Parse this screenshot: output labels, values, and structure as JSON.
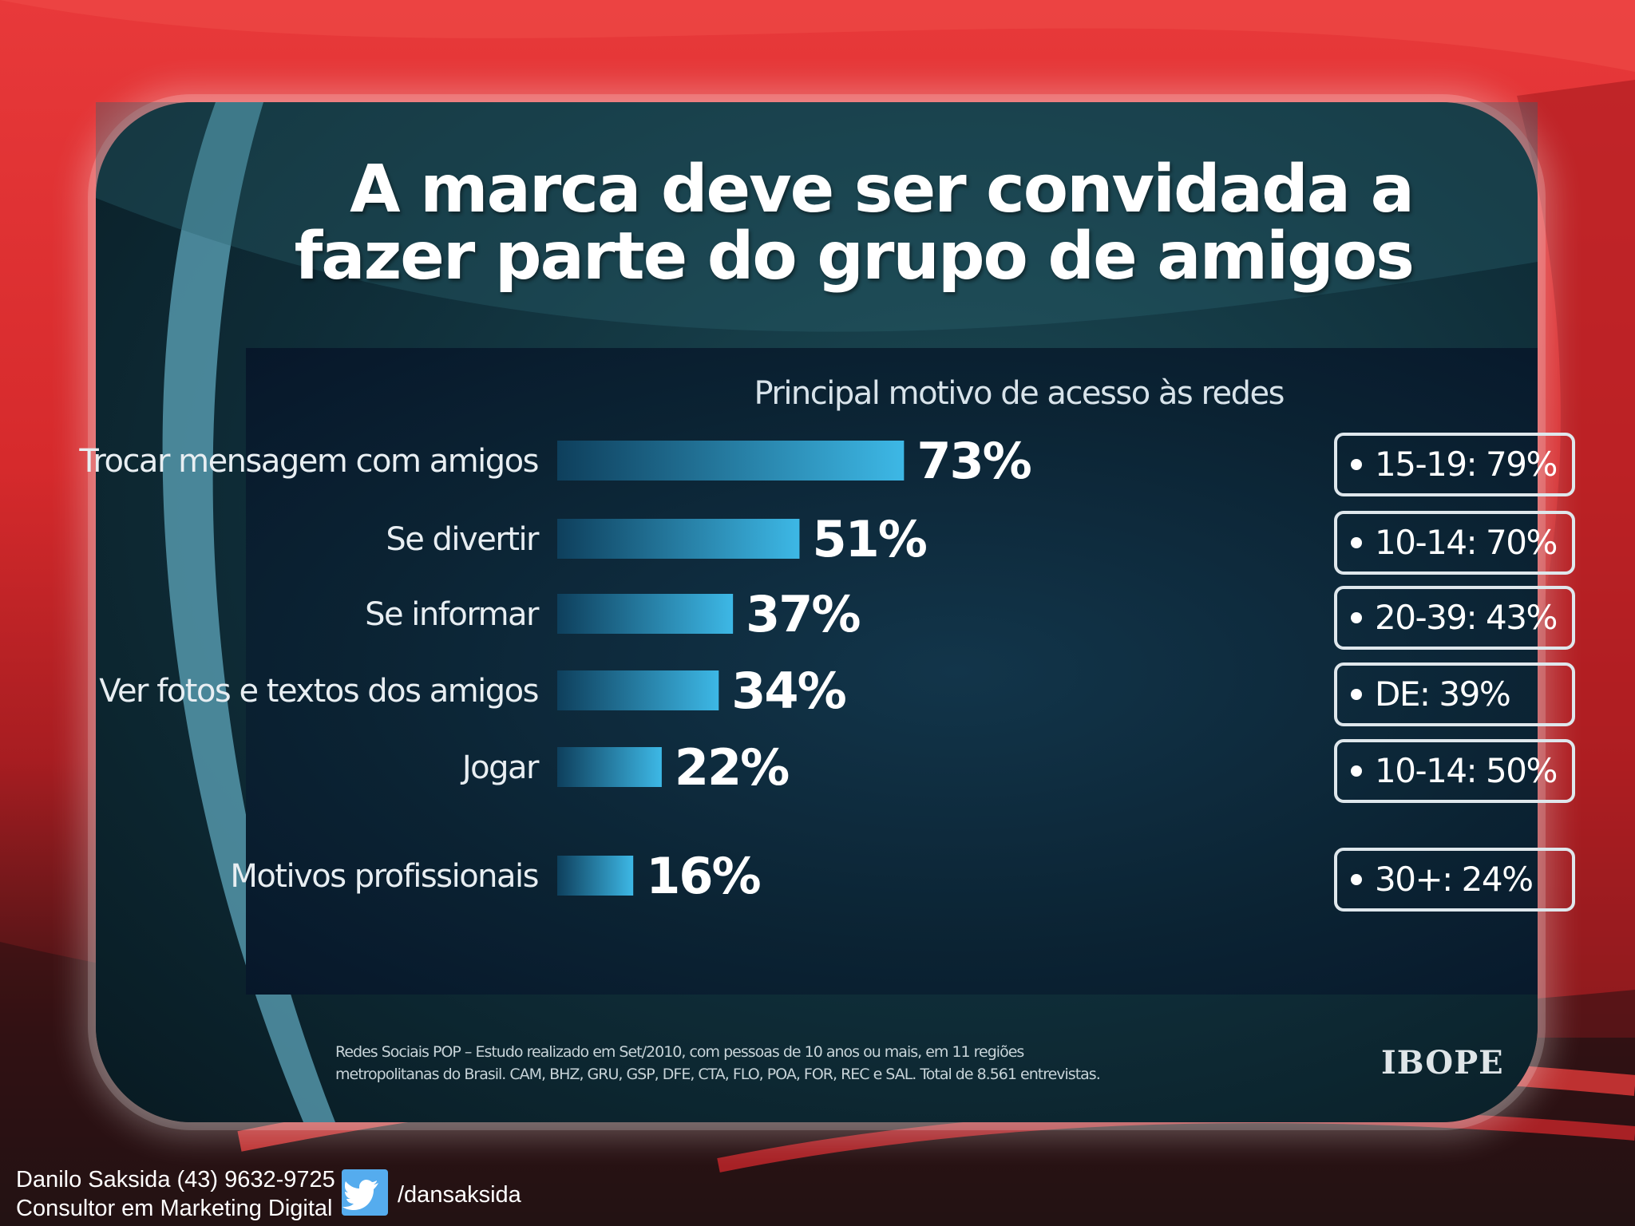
{
  "slide": {
    "title_line1": "A marca deve ser convidada a",
    "title_line2": "fazer parte do grupo de amigos",
    "source_line1": "Redes Sociais POP – Estudo realizado em Set/2010, com pessoas de 10 anos ou mais, em 11 regiões",
    "source_line2": "metropolitanas do Brasil. CAM, BHZ, GRU, GSP, DFE, CTA, FLO, POA, FOR, REC e SAL. Total de 8.561 entrevistas.",
    "logo_text": "IBOPE"
  },
  "footer": {
    "author_line1": "Danilo Saksida (43) 9632-9725",
    "author_line2": "Consultor em Marketing Digital",
    "twitter_icon": "twitter-bird-icon",
    "handle": "/dansaksida"
  },
  "colors": {
    "background_red": "#d62a2c",
    "bar_start": "#0e3f5c",
    "bar_end": "#3db8e6",
    "text_white": "#ffffff"
  },
  "chart_data": {
    "type": "bar",
    "orientation": "horizontal",
    "title": "Principal motivo de acesso às redes",
    "categories": [
      "Trocar mensagem com amigos",
      "Se divertir",
      "Se informar",
      "Ver fotos e textos dos amigos",
      "Jogar",
      "Motivos profissionais"
    ],
    "values": [
      73,
      51,
      37,
      34,
      22,
      16
    ],
    "value_labels": [
      "73%",
      "51%",
      "37%",
      "34%",
      "22%",
      "16%"
    ],
    "annotations": [
      "15-19: 79%",
      "10-14: 70%",
      "20-39: 43%",
      "DE: 39%",
      "10-14: 50%",
      "30+: 24%"
    ],
    "xlim": [
      0,
      100
    ],
    "grid": false,
    "legend": "none"
  }
}
